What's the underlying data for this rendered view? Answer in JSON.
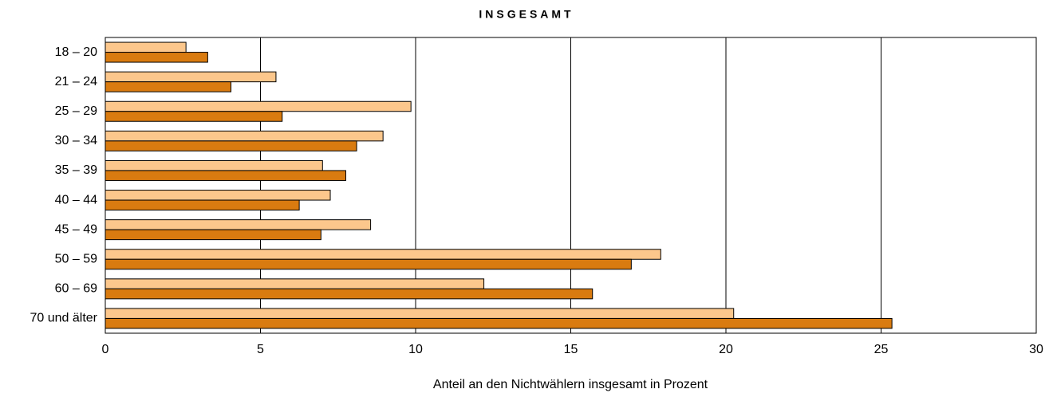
{
  "chart_data": {
    "type": "hbar",
    "title": "INSGESAMT",
    "x_label": "Anteil an den Nichtwählern insgesamt in Prozent",
    "categories": [
      "18 – 20",
      "21 – 24",
      "25 – 29",
      "30 – 34",
      "35 – 39",
      "40 – 44",
      "45 – 49",
      "50 – 59",
      "60 – 69",
      "70 und älter"
    ],
    "series": [
      {
        "color": "#fcc78c",
        "values": [
          2.6,
          5.5,
          9.85,
          8.95,
          7.0,
          7.25,
          8.55,
          17.9,
          12.2,
          20.25
        ]
      },
      {
        "color": "#d97b10",
        "values": [
          3.3,
          4.05,
          5.7,
          8.1,
          7.75,
          6.25,
          6.95,
          16.95,
          15.7,
          25.35
        ]
      }
    ],
    "xlim": [
      0,
      30
    ],
    "xticks": [
      0,
      5,
      10,
      15,
      20,
      25,
      30
    ],
    "grid": true
  }
}
